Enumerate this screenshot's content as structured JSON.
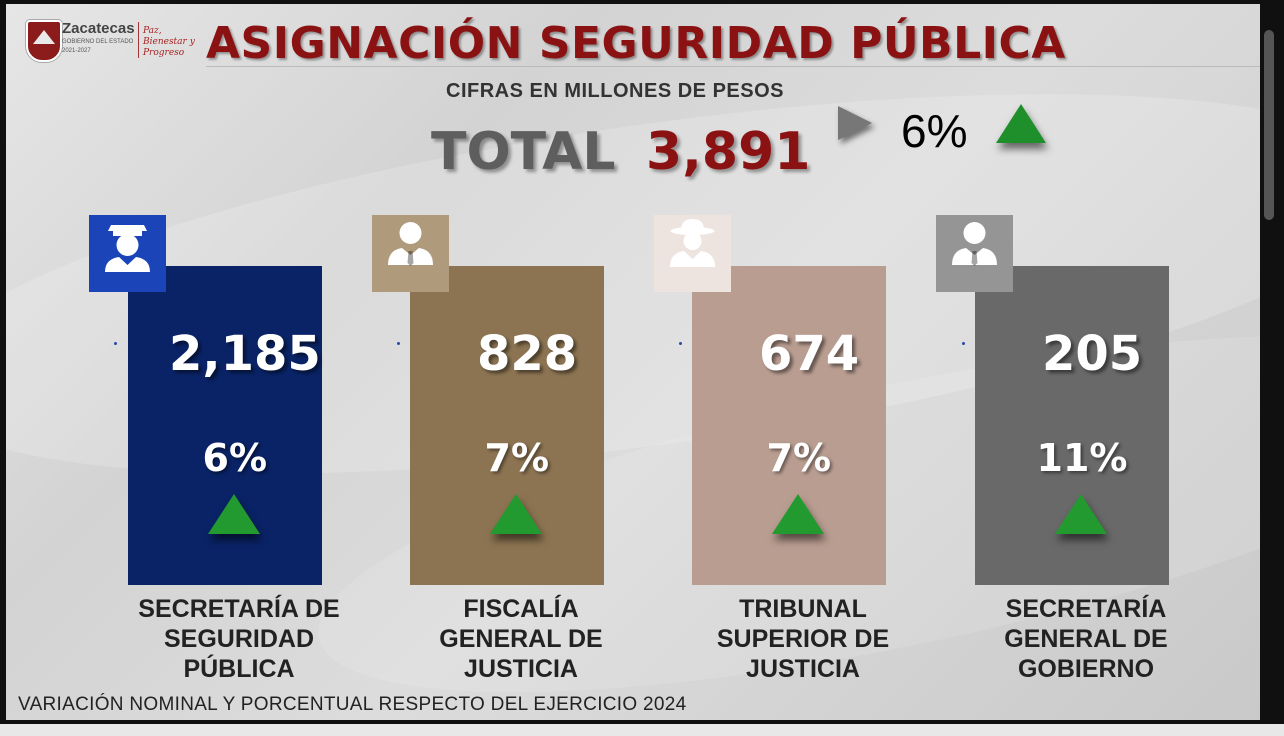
{
  "logo": {
    "name": "Zacatecas",
    "subtitle": "GOBIERNO DEL ESTADO",
    "years": "2021-2027",
    "slogan": "Paz, Bienestar y Progreso"
  },
  "colors": {
    "title": "#8b1212",
    "ssp": "#0a2366",
    "fiscalia": "#8c7452",
    "tribunal": "#b99d91",
    "gobierno": "#696969",
    "up_arrow": "#229a30"
  },
  "chart_data": {
    "type": "bar",
    "title": "ASIGNACIÓN SEGURIDAD PÚBLICA",
    "subtitle": "CIFRAS EN MILLONES DE PESOS",
    "total_label": "TOTAL",
    "total_value": "3,891",
    "total_change": "6%",
    "total_trend": "up",
    "categories": [
      "SECRETARÍA DE SEGURIDAD PÚBLICA",
      "FISCALÍA GENERAL DE JUSTICIA",
      "TRIBUNAL SUPERIOR DE JUSTICIA",
      "SECRETARÍA GENERAL DE GOBIERNO"
    ],
    "category_lines": [
      [
        "SECRETARÍA DE",
        "SEGURIDAD",
        "PÚBLICA"
      ],
      [
        "FISCALÍA",
        "GENERAL DE",
        "JUSTICIA"
      ],
      [
        "TRIBUNAL",
        "SUPERIOR DE",
        "JUSTICIA"
      ],
      [
        "SECRETARÍA",
        "GENERAL DE",
        "GOBIERNO"
      ]
    ],
    "values": [
      2185,
      828,
      674,
      205
    ],
    "value_labels": [
      "2,185",
      "828",
      "674",
      "205"
    ],
    "change_labels": [
      "6%",
      "7%",
      "7%",
      "11%"
    ],
    "trends": [
      "up",
      "up",
      "up",
      "up"
    ],
    "icons": [
      "police-officer-icon",
      "businessman-icon",
      "detective-icon",
      "businessman-icon"
    ],
    "footnote": "VARIACIÓN NOMINAL Y PORCENTUAL RESPECTO DEL EJERCICIO 2024"
  }
}
